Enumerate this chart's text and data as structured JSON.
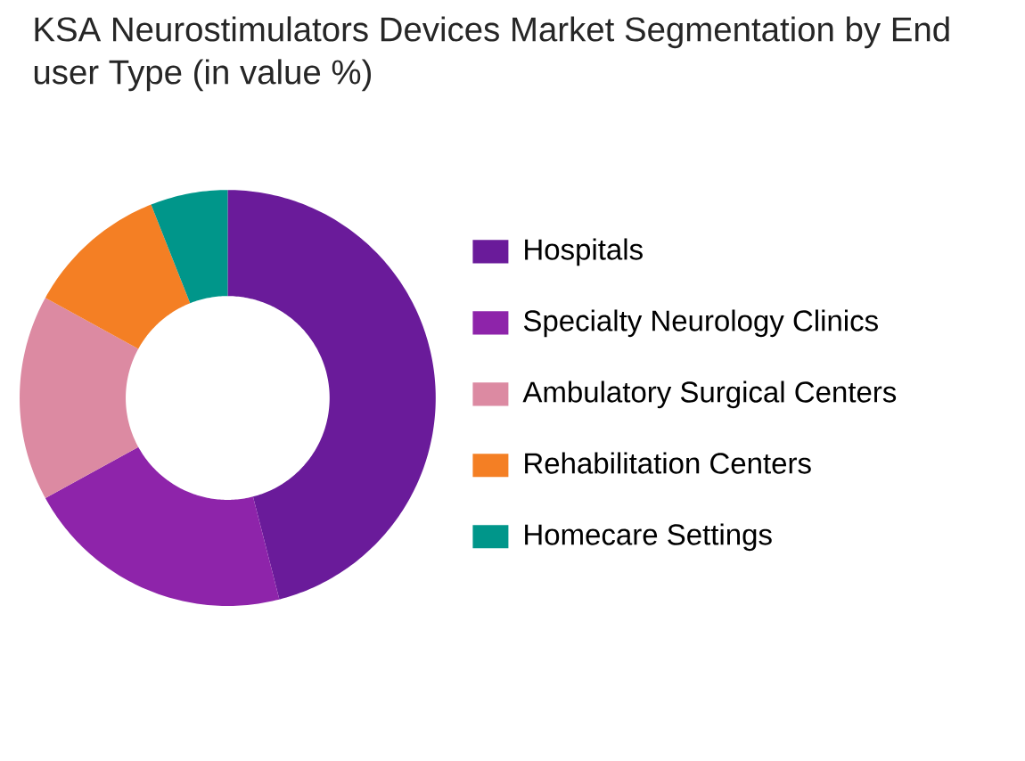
{
  "chart_data": {
    "type": "donut",
    "title": "KSA Neurostimulators Devices Market Segmentation by End user Type (in value %)",
    "categories": [
      "Hospitals",
      "Specialty Neurology Clinics",
      "Ambulatory Surgical Centers",
      "Rehabilitation Centers",
      "Homecare Settings"
    ],
    "values": [
      46,
      21,
      16,
      11,
      6
    ],
    "colors": [
      "#6a1b9a",
      "#8e24aa",
      "#dc8aa2",
      "#f47f24",
      "#00968a"
    ],
    "legend": "right"
  }
}
